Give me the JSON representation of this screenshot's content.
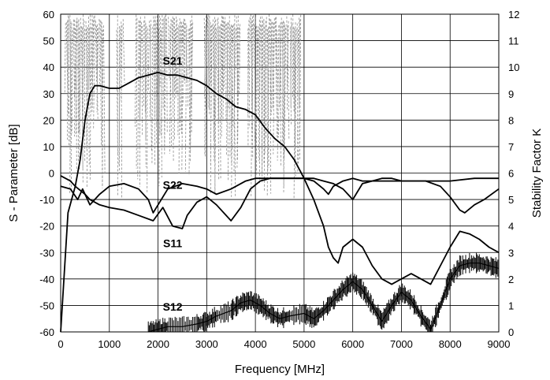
{
  "chart_data": {
    "type": "line",
    "title": "",
    "xlabel": "Frequency [MHz]",
    "ylabel": "S - Parameter  [dB]",
    "y2label": "Stability Factor K",
    "xlim": [
      0,
      9000
    ],
    "ylim": [
      -60,
      60
    ],
    "y2lim": [
      0,
      12
    ],
    "xticks": [
      "0",
      "1000",
      "2000",
      "3000",
      "4000",
      "5000",
      "6000",
      "7000",
      "8000",
      "9000"
    ],
    "yticks": [
      "-60",
      "-50",
      "-40",
      "-30",
      "-20",
      "-10",
      "0",
      "10",
      "20",
      "30",
      "40",
      "50",
      "60"
    ],
    "y2ticks": [
      "0",
      "1",
      "2",
      "3",
      "4",
      "5",
      "6",
      "7",
      "8",
      "9",
      "10",
      "11",
      "12"
    ],
    "grid": true,
    "series_labels": [
      {
        "text": "S21",
        "x": 2300,
        "y": 41
      },
      {
        "text": "S22",
        "x": 2300,
        "y": -6
      },
      {
        "text": "S11",
        "x": 2300,
        "y": -28
      },
      {
        "text": "S12",
        "x": 2300,
        "y": -52
      }
    ],
    "series": [
      {
        "name": "S21",
        "color": "#000000",
        "x": [
          0,
          150,
          300,
          400,
          500,
          600,
          700,
          800,
          1000,
          1200,
          1400,
          1600,
          1800,
          2000,
          2200,
          2400,
          2600,
          2800,
          3000,
          3200,
          3400,
          3600,
          3800,
          4000,
          4200,
          4400,
          4600,
          4800,
          5000,
          5200,
          5400,
          5500,
          5600,
          5700,
          5800,
          6000,
          6200,
          6400,
          6600,
          6800,
          7000,
          7200,
          7400,
          7600,
          7800,
          8000,
          8200,
          8400,
          8600,
          8800,
          9000
        ],
        "values": [
          -60,
          -15,
          -5,
          5,
          20,
          30,
          33,
          33,
          32,
          32,
          34,
          36,
          37,
          38,
          37,
          37,
          36,
          35,
          33,
          30,
          28,
          25,
          24,
          22,
          17,
          13,
          10,
          5,
          -2,
          -10,
          -20,
          -28,
          -32,
          -34,
          -28,
          -25,
          -28,
          -35,
          -40,
          -42,
          -40,
          -38,
          -40,
          -42,
          -35,
          -28,
          -22,
          -23,
          -25,
          -28,
          -30
        ]
      },
      {
        "name": "S22",
        "color": "#000000",
        "x": [
          0,
          200,
          350,
          450,
          500,
          600,
          800,
          1000,
          1300,
          1600,
          1800,
          1900,
          2000,
          2200,
          2500,
          2800,
          3000,
          3200,
          3500,
          3800,
          4000,
          4400,
          4800,
          5000,
          5200,
          5400,
          5500,
          5600,
          5800,
          6000,
          6200,
          6500,
          7000,
          7500,
          7800,
          8000,
          8200,
          8300,
          8500,
          8700,
          9000
        ],
        "values": [
          -5,
          -6,
          -10,
          -6,
          -8,
          -12,
          -8,
          -5,
          -4,
          -6,
          -10,
          -15,
          -12,
          -6,
          -4,
          -5,
          -6,
          -8,
          -6,
          -3,
          -2,
          -2,
          -2,
          -2,
          -3,
          -6,
          -8,
          -5,
          -3,
          -2,
          -3,
          -3,
          -3,
          -3,
          -5,
          -9,
          -14,
          -15,
          -12,
          -10,
          -6
        ]
      },
      {
        "name": "S11",
        "color": "#000000",
        "x": [
          0,
          200,
          300,
          500,
          600,
          800,
          1000,
          1300,
          1600,
          1900,
          2100,
          2300,
          2500,
          2600,
          2800,
          3000,
          3200,
          3500,
          3700,
          3900,
          4100,
          4300,
          4700,
          5000,
          5200,
          5400,
          5600,
          5800,
          5900,
          6000,
          6100,
          6200,
          6400,
          6600,
          6800,
          7000,
          7500,
          8000,
          8500,
          9000
        ],
        "values": [
          -1,
          -3,
          -5,
          -8,
          -10,
          -12,
          -13,
          -14,
          -16,
          -18,
          -13,
          -20,
          -21,
          -16,
          -11,
          -9,
          -12,
          -18,
          -13,
          -6,
          -3,
          -2,
          -2,
          -2,
          -2,
          -3,
          -4,
          -6,
          -8,
          -10,
          -7,
          -4,
          -3,
          -2,
          -2,
          -3,
          -3,
          -3,
          -2,
          -2
        ]
      },
      {
        "name": "S12",
        "color": "#000000",
        "x": [
          1800,
          2000,
          2200,
          2500,
          2800,
          3000,
          3200,
          3500,
          3700,
          3900,
          4100,
          4300,
          4500,
          4700,
          5000,
          5200,
          5400,
          5600,
          5800,
          6000,
          6200,
          6400,
          6600,
          6800,
          7000,
          7200,
          7400,
          7600,
          7800,
          8000,
          8200,
          8400,
          8600,
          8800,
          9000
        ],
        "values": [
          -60,
          -59,
          -58,
          -58,
          -57,
          -56,
          -54,
          -52,
          -49,
          -48,
          -50,
          -53,
          -55,
          -54,
          -53,
          -55,
          -52,
          -48,
          -44,
          -41,
          -44,
          -50,
          -56,
          -50,
          -45,
          -48,
          -54,
          -59,
          -50,
          -40,
          -35,
          -34,
          -34,
          -35,
          -36
        ]
      }
    ]
  }
}
